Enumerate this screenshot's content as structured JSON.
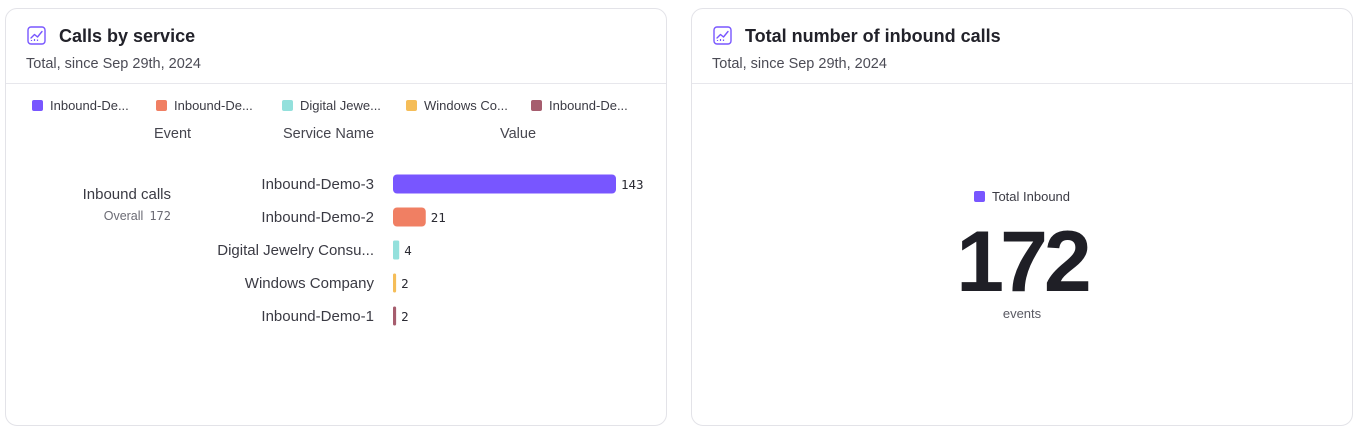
{
  "left_card": {
    "title": "Calls by service",
    "subtitle": "Total, since Sep 29th, 2024",
    "icon": "line-chart-icon",
    "legend": [
      {
        "label": "Inbound-De...",
        "color": "#7856ff"
      },
      {
        "label": "Inbound-De...",
        "color": "#f07f63"
      },
      {
        "label": "Digital Jewe...",
        "color": "#93e0dc"
      },
      {
        "label": "Windows Co...",
        "color": "#f5bd58"
      },
      {
        "label": "Inbound-De...",
        "color": "#a65d6e"
      }
    ],
    "columns": {
      "event": "Event",
      "service": "Service Name",
      "value": "Value"
    },
    "event": {
      "name": "Inbound calls",
      "total_label": "Overall",
      "total_value": "172"
    }
  },
  "right_card": {
    "title": "Total number of inbound calls",
    "subtitle": "Total, since Sep 29th, 2024",
    "icon": "line-chart-icon",
    "legend_label": "Total Inbound",
    "legend_color": "#7856ff",
    "value": "172",
    "unit": "events"
  },
  "chart_data": [
    {
      "type": "bar",
      "orientation": "horizontal",
      "categories": [
        "Inbound-Demo-3",
        "Inbound-Demo-2",
        "Digital Jewelry Consu...",
        "Windows Company",
        "Inbound-Demo-1"
      ],
      "values": [
        143,
        21,
        4,
        2,
        2
      ],
      "colors": [
        "#7856ff",
        "#f07f63",
        "#93e0dc",
        "#f5bd58",
        "#a65d6e"
      ],
      "title": "Calls by service",
      "subtitle": "Total, since Sep 29th, 2024",
      "grid": false,
      "legend_position": "top"
    }
  ]
}
